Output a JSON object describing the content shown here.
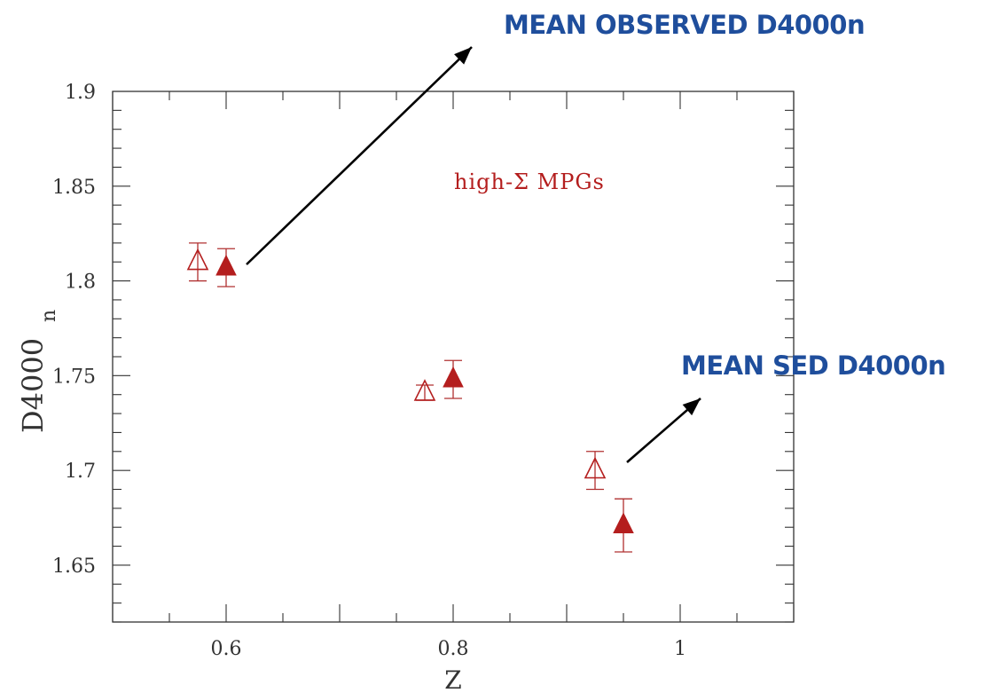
{
  "colors": {
    "series": "#b41e1e",
    "errorbar": "#b03030",
    "axis": "#333333",
    "callout_text": "#1f4e9c",
    "arrow": "#000000"
  },
  "callouts": [
    {
      "text": "MEAN OBSERVED D4000n"
    },
    {
      "text": "MEAN SED D4000n"
    }
  ],
  "chart_data": {
    "type": "scatter",
    "title": "",
    "xlabel": "Z",
    "ylabel": "D4000",
    "ylabel_subscript": "n",
    "xlim": [
      0.5,
      1.1
    ],
    "ylim": [
      1.62,
      1.9
    ],
    "x_ticks": [
      {
        "value": 0.6,
        "label": "0.6"
      },
      {
        "value": 0.8,
        "label": "0.8"
      },
      {
        "value": 1.0,
        "label": "1"
      }
    ],
    "y_ticks": [
      {
        "value": 1.65,
        "label": "1.65"
      },
      {
        "value": 1.7,
        "label": "1.7"
      },
      {
        "value": 1.75,
        "label": "1.75"
      },
      {
        "value": 1.8,
        "label": "1.8"
      },
      {
        "value": 1.85,
        "label": "1.85"
      },
      {
        "value": 1.9,
        "label": "1.9"
      }
    ],
    "annotation": "high-Σ MPGs",
    "grid": false,
    "series": [
      {
        "marker": "open-triangle",
        "points": [
          {
            "x": 0.575,
            "y": 1.81,
            "err": 0.01
          },
          {
            "x": 0.775,
            "y": 1.741,
            "err": 0.004
          },
          {
            "x": 0.925,
            "y": 1.7,
            "err": 0.01
          }
        ]
      },
      {
        "marker": "filled-triangle",
        "points": [
          {
            "x": 0.6,
            "y": 1.807,
            "err": 0.01
          },
          {
            "x": 0.8,
            "y": 1.748,
            "err": 0.01
          },
          {
            "x": 0.95,
            "y": 1.671,
            "err": 0.014
          }
        ]
      }
    ]
  }
}
